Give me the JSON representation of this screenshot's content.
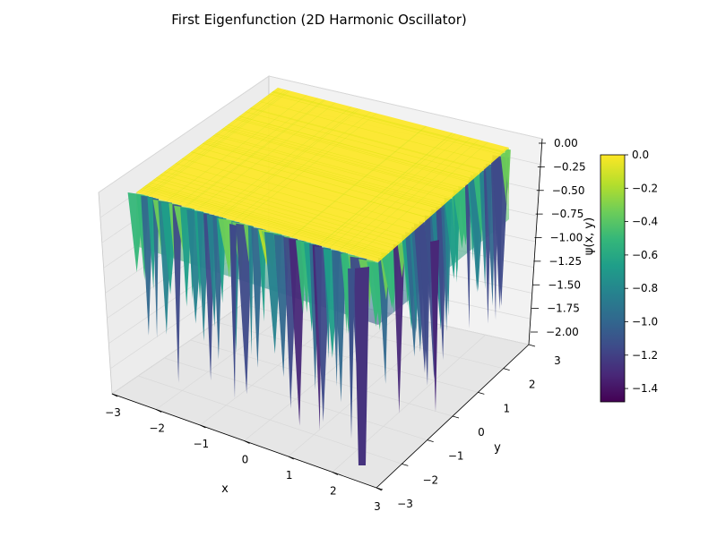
{
  "chart_data": {
    "type": "surface3d",
    "title": "First Eigenfunction (2D Harmonic Oscillator)",
    "xlabel": "x",
    "ylabel": "y",
    "zlabel": "ψ(x, y)",
    "xlim": [
      -3,
      3
    ],
    "ylim": [
      -3,
      3
    ],
    "zlim": [
      -2.05,
      0.0
    ],
    "x_ticks": [
      "−3",
      "−2",
      "−1",
      "0",
      "1",
      "2",
      "3"
    ],
    "y_ticks": [
      "−3",
      "−2",
      "−1",
      "0",
      "1",
      "2",
      "3"
    ],
    "z_ticks": [
      "−2.00",
      "−1.75",
      "−1.50",
      "−1.25",
      "−1.00",
      "−0.75",
      "−0.50",
      "−0.25",
      "0.00"
    ],
    "colormap": "viridis",
    "surface_plateau_value": 0.0,
    "surface_min_value": -1.48,
    "grid": true,
    "colorbar": {
      "min": -1.48,
      "max": 0.0,
      "ticks": [
        "0.0",
        "−0.2",
        "−0.4",
        "−0.6",
        "−0.8",
        "−1.0",
        "−1.2",
        "−1.4"
      ],
      "placement": "right"
    },
    "colors": {
      "pane": "#f2f2f2",
      "grid": "#d9d9d9",
      "viridis": [
        "#440154",
        "#482878",
        "#3e4a89",
        "#31688e",
        "#26828e",
        "#1f9e89",
        "#35b779",
        "#6dcd59",
        "#b4de2c",
        "#fde725"
      ]
    }
  }
}
